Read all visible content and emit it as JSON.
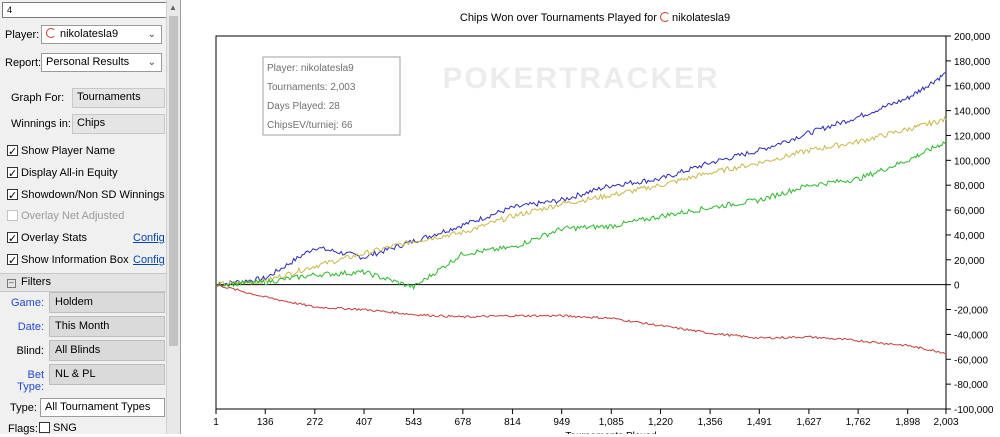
{
  "sidebar": {
    "search_value": "4",
    "player_label": "Player:",
    "player_value": "nikolatesla9",
    "report_label": "Report:",
    "report_value": "Personal Results",
    "graph_for_label": "Graph For:",
    "graph_for_value": "Tournaments",
    "winnings_label": "Winnings in:",
    "winnings_value": "Chips",
    "options": [
      {
        "label": "Show Player Name",
        "checked": true,
        "enabled": true
      },
      {
        "label": "Display All-in Equity",
        "checked": true,
        "enabled": true
      },
      {
        "label": "Showdown/Non SD Winnings",
        "checked": true,
        "enabled": true
      },
      {
        "label": "Overlay Net Adjusted",
        "checked": false,
        "enabled": false
      },
      {
        "label": "Overlay Stats",
        "checked": true,
        "enabled": true
      },
      {
        "label": "Show Information Box",
        "checked": true,
        "enabled": true
      }
    ],
    "config_label": "Config",
    "filters_title": "Filters",
    "filters": [
      {
        "label": "Game:",
        "value": "Holdem"
      },
      {
        "label": "Date:",
        "value": "This Month"
      },
      {
        "label": "Blind:",
        "value": "All Blinds"
      },
      {
        "label": "Bet Type:",
        "value": "NL & PL"
      }
    ],
    "type_label": "Type:",
    "type_value": "All Tournament Types",
    "flags_label": "Flags:",
    "flags_option": "SNG"
  },
  "chart_data": {
    "type": "line",
    "title": "Chips Won over Tournaments Played for nikolatesla9",
    "title_prefix": "Chips Won over Tournaments Played for",
    "title_player": "nikolatesla9",
    "xlabel": "Tournaments Played",
    "ylabel": "",
    "xlim": [
      1,
      2003
    ],
    "ylim": [
      -100000,
      200000
    ],
    "x_ticks": [
      "1",
      "136",
      "272",
      "407",
      "543",
      "678",
      "814",
      "949",
      "1,085",
      "1,220",
      "1,356",
      "1,491",
      "1,627",
      "1,762",
      "1,898",
      "2,003"
    ],
    "y_ticks": [
      "200,000",
      "180,000",
      "160,000",
      "140,000",
      "120,000",
      "100,000",
      "80,000",
      "60,000",
      "40,000",
      "20,000",
      "0",
      "-20,000",
      "-40,000",
      "-60,000",
      "-80,000",
      "-100,000"
    ],
    "y_axis_side": "right",
    "grid": true,
    "watermark": "POKERTRACKER",
    "info_box": [
      "Player: nikolatesla9",
      "Tournaments: 2,003",
      "Days Played: 28",
      "ChipsEV/turniej: 66"
    ],
    "series": [
      {
        "color": "#2b2bb8",
        "x": [
          1,
          136,
          272,
          407,
          543,
          678,
          814,
          949,
          1085,
          1220,
          1356,
          1491,
          1627,
          1762,
          1898,
          2003
        ],
        "y": [
          0,
          5000,
          30000,
          22000,
          35000,
          48000,
          62000,
          68000,
          80000,
          85000,
          98000,
          108000,
          122000,
          135000,
          150000,
          170000
        ]
      },
      {
        "color": "#c8b84a",
        "x": [
          1,
          136,
          272,
          407,
          543,
          678,
          814,
          949,
          1085,
          1220,
          1356,
          1491,
          1627,
          1762,
          1898,
          2003
        ],
        "y": [
          0,
          3000,
          15000,
          25000,
          35000,
          42000,
          55000,
          65000,
          72000,
          80000,
          90000,
          98000,
          108000,
          115000,
          125000,
          133000
        ]
      },
      {
        "color": "#2eb82e",
        "x": [
          1,
          136,
          272,
          407,
          543,
          678,
          814,
          949,
          1085,
          1220,
          1356,
          1491,
          1627,
          1762,
          1898,
          2003
        ],
        "y": [
          0,
          2000,
          8000,
          10000,
          -2000,
          25000,
          30000,
          45000,
          47000,
          55000,
          62000,
          68000,
          80000,
          85000,
          100000,
          115000
        ]
      },
      {
        "color": "#c83c3c",
        "x": [
          1,
          136,
          272,
          407,
          543,
          678,
          814,
          949,
          1085,
          1220,
          1356,
          1491,
          1627,
          1762,
          1898,
          2003
        ],
        "y": [
          0,
          -10000,
          -18000,
          -20000,
          -24000,
          -26000,
          -25000,
          -25000,
          -27000,
          -33000,
          -39000,
          -43000,
          -42000,
          -45000,
          -49000,
          -55000
        ]
      }
    ]
  }
}
